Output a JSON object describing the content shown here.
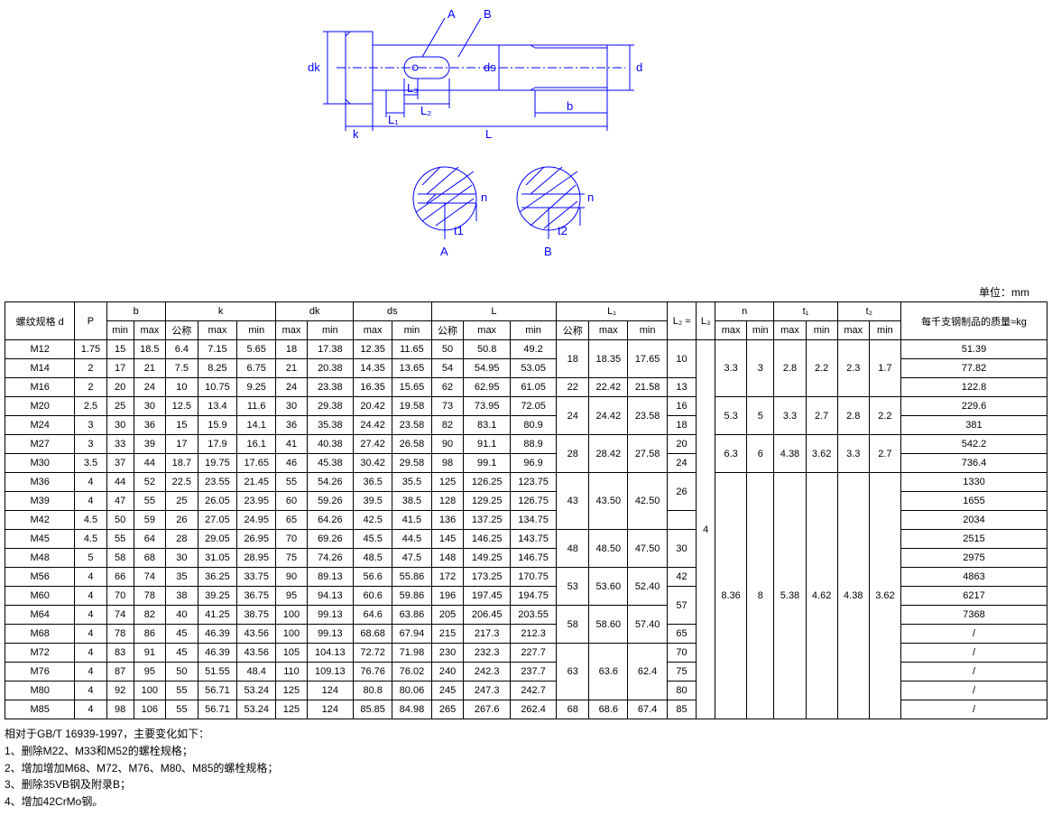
{
  "diagram": {
    "labels": {
      "A": "A",
      "B": "B",
      "dk": "dk",
      "ds": "ds",
      "d": "d",
      "k": "k",
      "L": "L",
      "L1": "L₁",
      "L2": "L₂",
      "L3": "L₃",
      "b": "b",
      "n": "n",
      "t1": "t1",
      "t2": "t2",
      "sectionA": "A",
      "sectionB": "B"
    },
    "stroke_color": "#0000ff"
  },
  "unit_label": "单位：mm",
  "table": {
    "header_groups": [
      {
        "label": "螺纹规格 d",
        "cols": 1,
        "rows": 2
      },
      {
        "label": "P",
        "cols": 1,
        "rows": 2
      },
      {
        "label": "b",
        "cols": 2,
        "sub": [
          "min",
          "max"
        ]
      },
      {
        "label": "k",
        "cols": 3,
        "sub": [
          "公称",
          "max",
          "min"
        ]
      },
      {
        "label": "dk",
        "cols": 2,
        "sub": [
          "max",
          "min"
        ]
      },
      {
        "label": "ds",
        "cols": 2,
        "sub": [
          "max",
          "min"
        ]
      },
      {
        "label": "L",
        "cols": 3,
        "sub": [
          "公称",
          "max",
          "min"
        ]
      },
      {
        "label": "L₁",
        "cols": 3,
        "sub": [
          "公称",
          "max",
          "min"
        ]
      },
      {
        "label": "L₂ ≈",
        "cols": 1,
        "rows": 2
      },
      {
        "label": "L₃",
        "cols": 1,
        "rows": 2
      },
      {
        "label": "n",
        "cols": 2,
        "sub": [
          "max",
          "min"
        ]
      },
      {
        "label": "t₁",
        "cols": 2,
        "sub": [
          "max",
          "min"
        ]
      },
      {
        "label": "t₂",
        "cols": 2,
        "sub": [
          "max",
          "min"
        ]
      },
      {
        "label": "每千支钢制品的质量≈kg",
        "cols": 1,
        "rows": 2
      }
    ],
    "rows": [
      [
        "M12",
        "1.75",
        "15",
        "18.5",
        "6.4",
        "7.15",
        "5.65",
        "18",
        "17.38",
        "12.35",
        "11.65",
        "50",
        "50.8",
        "49.2",
        "",
        "",
        "",
        "10",
        "",
        "",
        "",
        "",
        "",
        "",
        "",
        "51.39"
      ],
      [
        "M14",
        "2",
        "17",
        "21",
        "7.5",
        "8.25",
        "6.75",
        "21",
        "20.38",
        "14.35",
        "13.65",
        "54",
        "54.95",
        "53.05",
        "18",
        "18.35",
        "17.65",
        "",
        "",
        "3.3",
        "3",
        "2.8",
        "2.2",
        "2.3",
        "1.7",
        "77.82"
      ],
      [
        "M16",
        "2",
        "20",
        "24",
        "10",
        "10.75",
        "9.25",
        "24",
        "23.38",
        "16.35",
        "15.65",
        "62",
        "62.95",
        "61.05",
        "22",
        "22.42",
        "21.58",
        "13",
        "",
        "",
        "",
        "",
        "",
        "",
        "",
        "122.8"
      ],
      [
        "M20",
        "2.5",
        "25",
        "30",
        "12.5",
        "13.4",
        "11.6",
        "30",
        "29.38",
        "20.42",
        "19.58",
        "73",
        "73.95",
        "72.05",
        "",
        "",
        "",
        "16",
        "",
        "",
        "",
        "",
        "",
        "",
        "",
        "229.6"
      ],
      [
        "M24",
        "3",
        "30",
        "36",
        "15",
        "15.9",
        "14.1",
        "36",
        "35.38",
        "24.42",
        "23.58",
        "82",
        "83.1",
        "80.9",
        "24",
        "24.42",
        "23.58",
        "18",
        "",
        "5.3",
        "5",
        "3.3",
        "2.7",
        "2.8",
        "2.2",
        "381"
      ],
      [
        "M27",
        "3",
        "33",
        "39",
        "17",
        "17.9",
        "16.1",
        "41",
        "40.38",
        "27.42",
        "26.58",
        "90",
        "91.1",
        "88.9",
        "",
        "",
        "",
        "20",
        "",
        "",
        "",
        "",
        "",
        "",
        "",
        "542.2"
      ],
      [
        "M30",
        "3.5",
        "37",
        "44",
        "18.7",
        "19.75",
        "17.65",
        "46",
        "45.38",
        "30.42",
        "29.58",
        "98",
        "99.1",
        "96.9",
        "28",
        "28.42",
        "27.58",
        "24",
        "",
        "6.3",
        "6",
        "4.38",
        "3.62",
        "3.3",
        "2.7",
        "736.4"
      ],
      [
        "M36",
        "4",
        "44",
        "52",
        "22.5",
        "23.55",
        "21.45",
        "55",
        "54.26",
        "36.5",
        "35.5",
        "125",
        "126.25",
        "123.75",
        "",
        "",
        "",
        "",
        "",
        "",
        "",
        "",
        "",
        "",
        "",
        "1330"
      ],
      [
        "M39",
        "4",
        "47",
        "55",
        "25",
        "26.05",
        "23.95",
        "60",
        "59.26",
        "39.5",
        "38.5",
        "128",
        "129.25",
        "126.75",
        "43",
        "43.50",
        "42.50",
        "26",
        "4",
        "",
        "",
        "",
        "",
        "",
        "",
        "1655"
      ],
      [
        "M42",
        "4.5",
        "50",
        "59",
        "26",
        "27.05",
        "24.95",
        "65",
        "64.26",
        "42.5",
        "41.5",
        "136",
        "137.25",
        "134.75",
        "",
        "",
        "",
        "",
        "",
        "",
        "",
        "",
        "",
        "",
        "",
        "2034"
      ],
      [
        "M45",
        "4.5",
        "55",
        "64",
        "28",
        "29.05",
        "26.95",
        "70",
        "69.26",
        "45.5",
        "44.5",
        "145",
        "146.25",
        "143.75",
        "",
        "",
        "",
        "30",
        "",
        "",
        "",
        "",
        "",
        "",
        "",
        "2515"
      ],
      [
        "M48",
        "5",
        "58",
        "68",
        "30",
        "31.05",
        "28.95",
        "75",
        "74.26",
        "48.5",
        "47.5",
        "148",
        "149.25",
        "146.75",
        "48",
        "48.50",
        "47.50",
        "",
        "",
        "",
        "",
        "",
        "",
        "",
        "",
        "2975"
      ],
      [
        "M56",
        "4",
        "66",
        "74",
        "35",
        "36.25",
        "33.75",
        "90",
        "89.13",
        "56.6",
        "55.86",
        "172",
        "173.25",
        "170.75",
        "",
        "",
        "",
        "42",
        "",
        "8.36",
        "8",
        "5.38",
        "4.62",
        "4.38",
        "3.62",
        "4863"
      ],
      [
        "M60",
        "4",
        "70",
        "78",
        "38",
        "39.25",
        "36.75",
        "95",
        "94.13",
        "60.6",
        "59.86",
        "196",
        "197.45",
        "194.75",
        "53",
        "53.60",
        "52.40",
        "",
        "",
        "",
        "",
        "",
        "",
        "",
        "",
        "6217"
      ],
      [
        "M64",
        "4",
        "74",
        "82",
        "40",
        "41.25",
        "38.75",
        "100",
        "99.13",
        "64.6",
        "63.86",
        "205",
        "206.45",
        "203.55",
        "",
        "",
        "",
        "57",
        "",
        "",
        "",
        "",
        "",
        "",
        "",
        "7368"
      ],
      [
        "M68",
        "4",
        "78",
        "86",
        "45",
        "46.39",
        "43.56",
        "100",
        "99.13",
        "68.68",
        "67.94",
        "215",
        "217.3",
        "212.3",
        "58",
        "58.60",
        "57.40",
        "65",
        "",
        "",
        "",
        "",
        "",
        "",
        "",
        "/"
      ],
      [
        "M72",
        "4",
        "83",
        "91",
        "45",
        "46.39",
        "43.56",
        "105",
        "104.13",
        "72.72",
        "71.98",
        "230",
        "232.3",
        "227.7",
        "",
        "",
        "",
        "70",
        "",
        "",
        "",
        "",
        "",
        "",
        "",
        "/"
      ],
      [
        "M76",
        "4",
        "87",
        "95",
        "50",
        "51.55",
        "48.4",
        "110",
        "109.13",
        "76.76",
        "76.02",
        "240",
        "242.3",
        "237.7",
        "63",
        "63.6",
        "62.4",
        "75",
        "",
        "",
        "",
        "",
        "",
        "",
        "",
        "/"
      ],
      [
        "M80",
        "4",
        "92",
        "100",
        "55",
        "56.71",
        "53.24",
        "125",
        "124",
        "80.8",
        "80.06",
        "245",
        "247.3",
        "242.7",
        "",
        "",
        "",
        "80",
        "",
        "",
        "",
        "",
        "",
        "",
        "",
        "/"
      ],
      [
        "M85",
        "4",
        "98",
        "106",
        "55",
        "56.71",
        "53.24",
        "125",
        "124",
        "85.85",
        "84.98",
        "265",
        "267.6",
        "262.4",
        "68",
        "68.6",
        "67.4",
        "85",
        "",
        "",
        "",
        "",
        "",
        "",
        "",
        "/"
      ]
    ],
    "merges": {
      "L1": [
        {
          "start": 0,
          "span": 2,
          "v": [
            "18",
            "18.35",
            "17.65"
          ]
        },
        {
          "start": 3,
          "span": 2,
          "v": [
            "24",
            "24.42",
            "23.58"
          ]
        },
        {
          "start": 5,
          "span": 2,
          "v": [
            "28",
            "28.42",
            "27.58"
          ]
        },
        {
          "start": 7,
          "span": 3,
          "v": [
            "43",
            "43.50",
            "42.50"
          ]
        },
        {
          "start": 10,
          "span": 2,
          "v": [
            "48",
            "48.50",
            "47.50"
          ]
        },
        {
          "start": 12,
          "span": 2,
          "v": [
            "53",
            "53.60",
            "52.40"
          ]
        },
        {
          "start": 14,
          "span": 2,
          "v": [
            "58",
            "58.60",
            "57.40"
          ]
        },
        {
          "start": 16,
          "span": 3,
          "v": [
            "63",
            "63.6",
            "62.4"
          ]
        }
      ],
      "L2": [
        {
          "start": 0,
          "span": 2,
          "v": "10"
        },
        {
          "start": 7,
          "span": 2,
          "v": "26"
        },
        {
          "start": 10,
          "span": 2,
          "v": "30"
        },
        {
          "start": 13,
          "span": 2,
          "v": "57"
        }
      ],
      "L3": {
        "span": 20,
        "v": "4"
      },
      "n": [
        {
          "start": 0,
          "span": 3,
          "v": [
            "3.3",
            "3"
          ]
        },
        {
          "start": 3,
          "span": 2,
          "v": [
            "5.3",
            "5"
          ]
        },
        {
          "start": 5,
          "span": 2,
          "v": [
            "6.3",
            "6"
          ]
        },
        {
          "start": 7,
          "span": 13,
          "v": [
            "8.36",
            "8"
          ]
        }
      ],
      "t1": [
        {
          "start": 0,
          "span": 3,
          "v": [
            "2.8",
            "2.2"
          ]
        },
        {
          "start": 3,
          "span": 2,
          "v": [
            "3.3",
            "2.7"
          ]
        },
        {
          "start": 5,
          "span": 2,
          "v": [
            "4.38",
            "3.62"
          ]
        },
        {
          "start": 7,
          "span": 13,
          "v": [
            "5.38",
            "4.62"
          ]
        }
      ],
      "t2": [
        {
          "start": 0,
          "span": 3,
          "v": [
            "2.3",
            "1.7"
          ]
        },
        {
          "start": 3,
          "span": 2,
          "v": [
            "2.8",
            "2.2"
          ]
        },
        {
          "start": 5,
          "span": 2,
          "v": [
            "3.3",
            "2.7"
          ]
        },
        {
          "start": 7,
          "span": 13,
          "v": [
            "4.38",
            "3.62"
          ]
        }
      ]
    }
  },
  "notes": {
    "title": "相对于GB/T 16939-1997，主要变化如下：",
    "items": [
      "1、删除M22、M33和M52的螺栓规格；",
      "2、增加增加M68、M72、M76、M80、M85的螺栓规格；",
      "3、删除35VB钢及附录B；",
      "4、增加42CrMo钢。"
    ]
  }
}
